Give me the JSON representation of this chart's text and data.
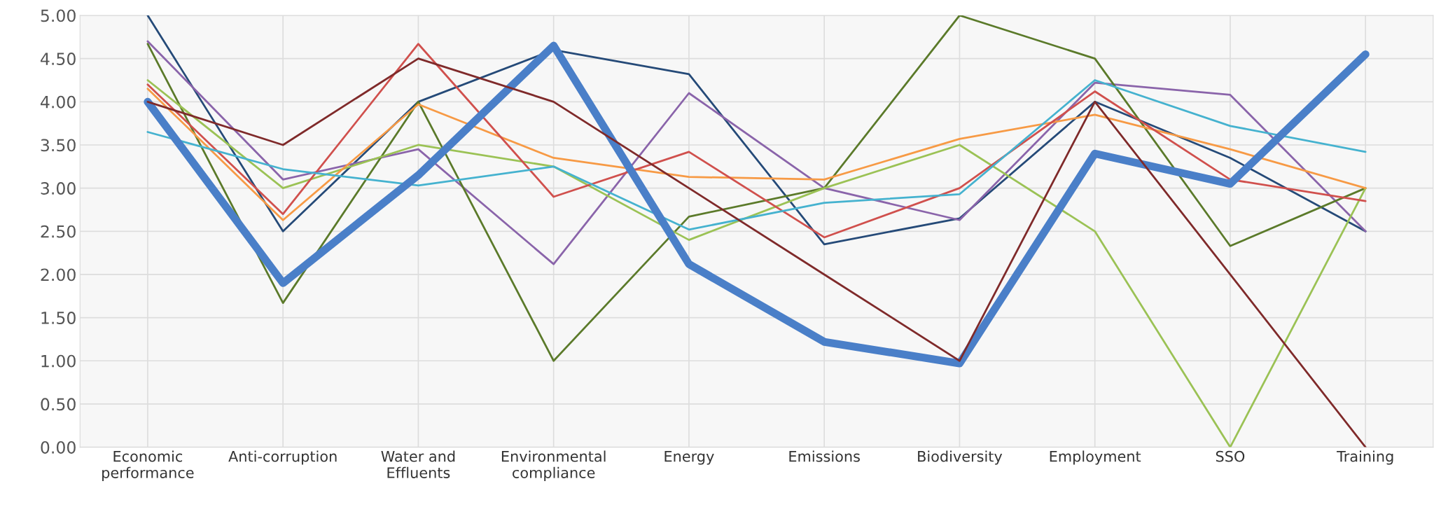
{
  "chart_data": {
    "type": "line",
    "categories": [
      "Economic\nperformance",
      "Anti-corruption",
      "Water and\nEffluents",
      "Environmental\ncompliance",
      "Energy",
      "Emissions",
      "Biodiversity",
      "Employment",
      "SSO",
      "Training"
    ],
    "series": [
      {
        "color": "#4a7fc8",
        "values": [
          4.0,
          1.9,
          3.15,
          4.65,
          2.12,
          1.22,
          0.97,
          3.4,
          3.05,
          4.55
        ]
      },
      {
        "color": "#254a78",
        "values": [
          5.0,
          2.5,
          4.0,
          4.6,
          4.32,
          2.35,
          2.65,
          4.0,
          3.35,
          2.5
        ]
      },
      {
        "color": "#8a64aa",
        "values": [
          4.7,
          3.1,
          3.45,
          2.12,
          4.1,
          3.0,
          2.63,
          4.22,
          4.08,
          2.5
        ]
      },
      {
        "color": "#5b7a2a",
        "values": [
          4.67,
          1.67,
          4.0,
          1.0,
          2.67,
          3.0,
          5.0,
          4.5,
          2.33,
          3.0
        ]
      },
      {
        "color": "#9bc255",
        "values": [
          4.25,
          3.0,
          3.5,
          3.25,
          2.4,
          3.0,
          3.5,
          2.5,
          0.0,
          3.0
        ]
      },
      {
        "color": "#f79a45",
        "values": [
          4.15,
          2.63,
          3.97,
          3.35,
          3.13,
          3.1,
          3.57,
          3.85,
          3.45,
          3.0
        ]
      },
      {
        "color": "#d0504d",
        "values": [
          4.2,
          2.7,
          4.67,
          2.9,
          3.42,
          2.43,
          3.0,
          4.12,
          3.1,
          2.85
        ]
      },
      {
        "color": "#7f2a2a",
        "values": [
          4.0,
          3.5,
          4.5,
          4.0,
          3.0,
          2.0,
          1.0,
          4.0,
          2.0,
          0.0
        ]
      },
      {
        "color": "#45b2cf",
        "values": [
          3.65,
          3.22,
          3.03,
          3.25,
          2.52,
          2.83,
          2.93,
          4.25,
          3.72,
          3.42
        ]
      }
    ],
    "ylim": [
      0,
      5
    ],
    "yticks": [
      {
        "value": 0,
        "label": "0.00"
      },
      {
        "value": 0.5,
        "label": "0.50"
      },
      {
        "value": 1,
        "label": "1.00"
      },
      {
        "value": 1.5,
        "label": "1.50"
      },
      {
        "value": 2,
        "label": "2.00"
      },
      {
        "value": 2.5,
        "label": "2.50"
      },
      {
        "value": 3,
        "label": "3.00"
      },
      {
        "value": 3.5,
        "label": "3.50"
      },
      {
        "value": 4,
        "label": "4.00"
      },
      {
        "value": 4.5,
        "label": "4.50"
      },
      {
        "value": 5,
        "label": "5.00"
      }
    ],
    "grid": true,
    "legend": false
  }
}
